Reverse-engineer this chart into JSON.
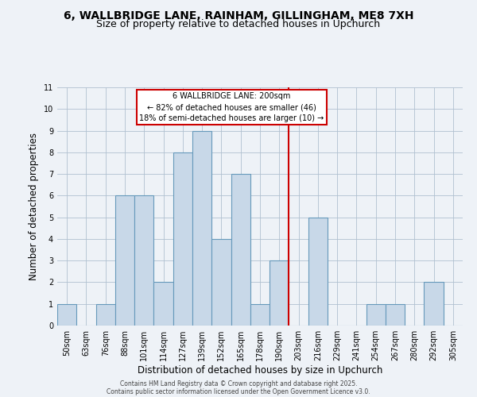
{
  "title_line1": "6, WALLBRIDGE LANE, RAINHAM, GILLINGHAM, ME8 7XH",
  "title_line2": "Size of property relative to detached houses in Upchurch",
  "xlabel": "Distribution of detached houses by size in Upchurch",
  "ylabel": "Number of detached properties",
  "bar_labels": [
    "50sqm",
    "63sqm",
    "76sqm",
    "88sqm",
    "101sqm",
    "114sqm",
    "127sqm",
    "139sqm",
    "152sqm",
    "165sqm",
    "178sqm",
    "190sqm",
    "203sqm",
    "216sqm",
    "229sqm",
    "241sqm",
    "254sqm",
    "267sqm",
    "280sqm",
    "292sqm",
    "305sqm"
  ],
  "bar_values": [
    1,
    0,
    1,
    6,
    6,
    2,
    8,
    9,
    4,
    7,
    1,
    3,
    0,
    5,
    0,
    0,
    1,
    1,
    0,
    2,
    0
  ],
  "bar_color": "#c8d8e8",
  "bar_edge_color": "#6699bb",
  "ylim": [
    0,
    11
  ],
  "yticks": [
    0,
    1,
    2,
    3,
    4,
    5,
    6,
    7,
    8,
    9,
    10,
    11
  ],
  "vline_color": "#cc0000",
  "annotation_title": "6 WALLBRIDGE LANE: 200sqm",
  "annotation_line1": "← 82% of detached houses are smaller (46)",
  "annotation_line2": "18% of semi-detached houses are larger (10) →",
  "annotation_box_color": "#cc0000",
  "footer_line1": "Contains HM Land Registry data © Crown copyright and database right 2025.",
  "footer_line2": "Contains public sector information licensed under the Open Government Licence v3.0.",
  "bg_color": "#eef2f7",
  "grid_color": "#b0c0d0",
  "title_fontsize": 10,
  "subtitle_fontsize": 9,
  "tick_fontsize": 7,
  "ylabel_fontsize": 8.5,
  "xlabel_fontsize": 8.5,
  "footer_fontsize": 5.5
}
